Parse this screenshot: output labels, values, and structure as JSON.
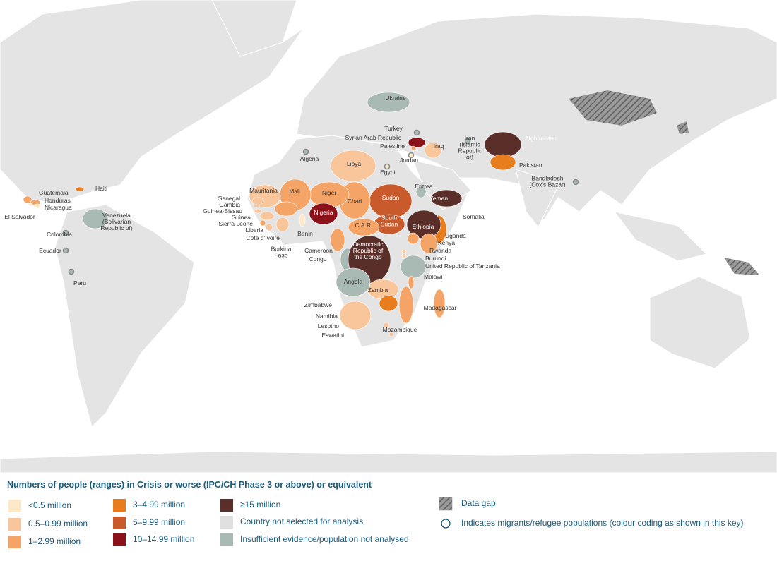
{
  "map": {
    "legend": {
      "title": "Numbers of people (ranges) in Crisis or worse (IPC/CH Phase 3 or above) or equivalent",
      "items": [
        {
          "label": "<0.5 million",
          "color": "#fde9c7",
          "kind": "swatch"
        },
        {
          "label": "0.5–0.99 million",
          "color": "#f9c59b",
          "kind": "swatch"
        },
        {
          "label": "1–2.99 million",
          "color": "#f5a467",
          "kind": "swatch"
        },
        {
          "label": "3–4.99 million",
          "color": "#e87d1e",
          "kind": "swatch"
        },
        {
          "label": "5–9.99 million",
          "color": "#c85a2c",
          "kind": "swatch"
        },
        {
          "label": "10–14.99 million",
          "color": "#8b1218",
          "kind": "swatch"
        },
        {
          "label": "≥15 million",
          "color": "#5a2f2a",
          "kind": "swatch"
        },
        {
          "label": "Country not selected for analysis",
          "color": "#e0e0e0",
          "kind": "swatch"
        },
        {
          "label": "Insufficient evidence/population not analysed",
          "color": "#a9b9b3",
          "kind": "swatch"
        },
        {
          "label": "Data gap",
          "color": "#888888",
          "kind": "hatch"
        },
        {
          "label": "Indicates migrants/refugee populations (colour coding as shown in this key)",
          "color": "#1a5b7d",
          "kind": "circle"
        }
      ]
    },
    "countries": [
      {
        "name": "Ukraine",
        "category": 8,
        "migrants": false
      },
      {
        "name": "Turkey",
        "category": 8,
        "migrants": true
      },
      {
        "name": "Syrian Arab Republic",
        "category": 5,
        "migrants": false
      },
      {
        "name": "Palestine",
        "category": 2,
        "migrants": false
      },
      {
        "name": "Iraq",
        "category": 1,
        "migrants": false
      },
      {
        "name": "Jordan",
        "category": 0,
        "migrants": true
      },
      {
        "name": "Egypt",
        "category": 0,
        "migrants": true
      },
      {
        "name": "Algeria",
        "category": 8,
        "migrants": true
      },
      {
        "name": "Libya",
        "category": 1,
        "migrants": false
      },
      {
        "name": "Afghanistan",
        "category": 6,
        "migrants": false
      },
      {
        "name": [
          "Iran",
          "(Islamic",
          "Republic",
          "of)"
        ],
        "category": 8,
        "migrants": true
      },
      {
        "name": "Pakistan",
        "category": 3,
        "migrants": false
      },
      {
        "name": [
          "Bangladesh",
          "(Cox's Bazar)"
        ],
        "category": 8,
        "migrants": true
      },
      {
        "name": "Yemen",
        "category": 6,
        "migrants": false
      },
      {
        "name": "Eritrea",
        "category": 8,
        "migrants": false
      },
      {
        "name": "Somalia",
        "category": 3,
        "migrants": false
      },
      {
        "name": "Ethiopia",
        "category": 6,
        "migrants": false
      },
      {
        "name": "Sudan",
        "category": 4,
        "migrants": false
      },
      {
        "name": [
          "South",
          "Sudan"
        ],
        "category": 4,
        "migrants": false
      },
      {
        "name": "Chad",
        "category": 2,
        "migrants": false
      },
      {
        "name": "Niger",
        "category": 2,
        "migrants": false
      },
      {
        "name": "Mali",
        "category": 2,
        "migrants": false
      },
      {
        "name": "Mauritania",
        "category": 1,
        "migrants": false
      },
      {
        "name": "Nigeria",
        "category": 5,
        "migrants": false
      },
      {
        "name": "Senegal",
        "category": 1,
        "migrants": false
      },
      {
        "name": "Gambia",
        "category": 1,
        "migrants": false
      },
      {
        "name": "Guinea-Bissau",
        "category": 1,
        "migrants": false
      },
      {
        "name": "Guinea",
        "category": 1,
        "migrants": false
      },
      {
        "name": "Sierra Leone",
        "category": 2,
        "migrants": false
      },
      {
        "name": "Liberia",
        "category": 1,
        "migrants": false
      },
      {
        "name": "Côte d'Ivoire",
        "category": 1,
        "migrants": false
      },
      {
        "name": [
          "Burkina",
          "Faso"
        ],
        "category": 2,
        "migrants": false
      },
      {
        "name": "Benin",
        "category": 0,
        "migrants": false
      },
      {
        "name": "C.A.R.",
        "category": 2,
        "migrants": false
      },
      {
        "name": "Cameroon",
        "category": 2,
        "migrants": false
      },
      {
        "name": "Congo",
        "category": 8,
        "migrants": false
      },
      {
        "name": [
          "Democratic",
          "Republic of",
          "the Congo"
        ],
        "category": 6,
        "migrants": false
      },
      {
        "name": "Uganda",
        "category": 2,
        "migrants": false
      },
      {
        "name": "Kenya",
        "category": 2,
        "migrants": false
      },
      {
        "name": "Rwanda",
        "category": 1,
        "migrants": false
      },
      {
        "name": "Burundi",
        "category": 1,
        "migrants": false
      },
      {
        "name": "United Republic of Tanzania",
        "category": 8,
        "migrants": false
      },
      {
        "name": "Malawi",
        "category": 2,
        "migrants": false
      },
      {
        "name": "Mozambique",
        "category": 2,
        "migrants": false
      },
      {
        "name": "Zambia",
        "category": 1,
        "migrants": false
      },
      {
        "name": "Angola",
        "category": 8,
        "migrants": false
      },
      {
        "name": "Zimbabwe",
        "category": 3,
        "migrants": false
      },
      {
        "name": "Namibia",
        "category": 1,
        "migrants": false
      },
      {
        "name": "Lesotho",
        "category": 1,
        "migrants": false
      },
      {
        "name": "Eswatini",
        "category": 1,
        "migrants": false
      },
      {
        "name": "Madagascar",
        "category": 2,
        "migrants": false
      },
      {
        "name": "Haiti",
        "category": 3,
        "migrants": false
      },
      {
        "name": "Guatemala",
        "category": 2,
        "migrants": false
      },
      {
        "name": "Honduras",
        "category": 2,
        "migrants": false
      },
      {
        "name": "Nicaragua",
        "category": 0,
        "migrants": false
      },
      {
        "name": "El Salvador",
        "category": 0,
        "migrants": false
      },
      {
        "name": [
          "Venezuela",
          "(Bolivarian",
          "Republic of)"
        ],
        "category": 8,
        "migrants": false
      },
      {
        "name": "Colombia",
        "category": 8,
        "migrants": true
      },
      {
        "name": "Ecuador",
        "category": 8,
        "migrants": true
      },
      {
        "name": "Peru",
        "category": 8,
        "migrants": true
      }
    ]
  }
}
